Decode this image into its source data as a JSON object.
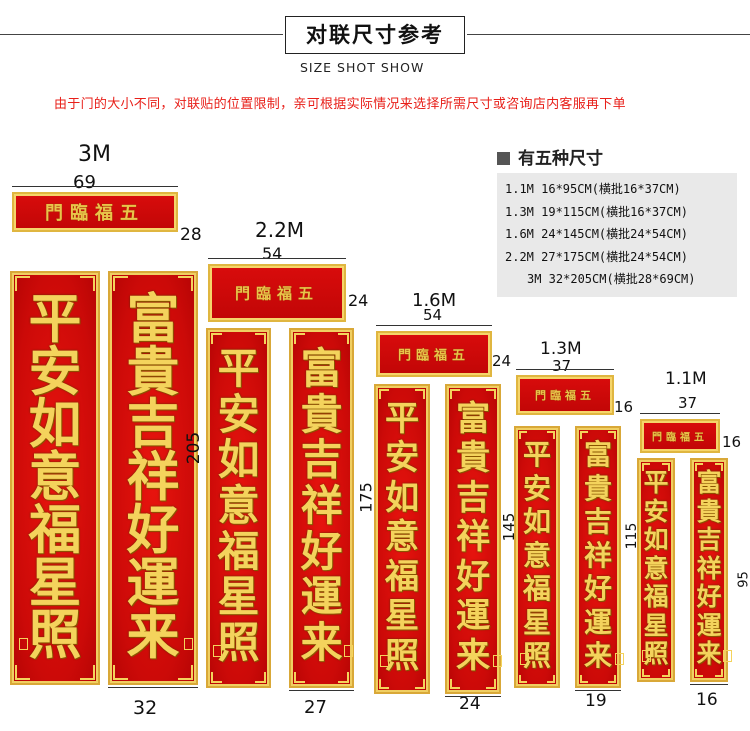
{
  "header": {
    "title": "对联尺寸参考",
    "subtitle": "SIZE SHOT SHOW",
    "note": "由于门的大小不同，对联贴的位置限制，亲可根据实际情况来选择所需尺寸或咨询店内客服再下单"
  },
  "size_table": {
    "heading": "有五种尺寸",
    "rows": [
      "1.1M 16*95CM(横批16*37CM)",
      "1.3M 19*115CM(横批16*37CM)",
      "1.6M 24*145CM(横批24*54CM)",
      "2.2M 27*175CM(横批24*54CM)",
      "3M 32*205CM(横批28*69CM)"
    ]
  },
  "couplet": {
    "banner_text": "門臨福五",
    "left_text": [
      "平",
      "安",
      "如",
      "意",
      "福",
      "星",
      "照"
    ],
    "right_text": [
      "富",
      "貴",
      "吉",
      "祥",
      "好",
      "運",
      "来"
    ]
  },
  "sets": [
    {
      "label": "3M",
      "banner_width": "69",
      "banner_height": "28",
      "scroll_height": "205",
      "scroll_width": "32"
    },
    {
      "label": "2.2M",
      "banner_width": "54",
      "banner_height": "24",
      "scroll_height": "175",
      "scroll_width": "27"
    },
    {
      "label": "1.6M",
      "banner_width": "54",
      "banner_height": "24",
      "scroll_height": "145",
      "scroll_width": "24"
    },
    {
      "label": "1.3M",
      "banner_width": "37",
      "banner_height": "16",
      "scroll_height": "115",
      "scroll_width": "19"
    },
    {
      "label": "1.1M",
      "banner_width": "37",
      "banner_height": "16",
      "scroll_height": "95",
      "scroll_width": "16"
    }
  ],
  "colors": {
    "red": "#d10b0b",
    "gold": "#f4d35c",
    "note_red": "#e8201a"
  }
}
